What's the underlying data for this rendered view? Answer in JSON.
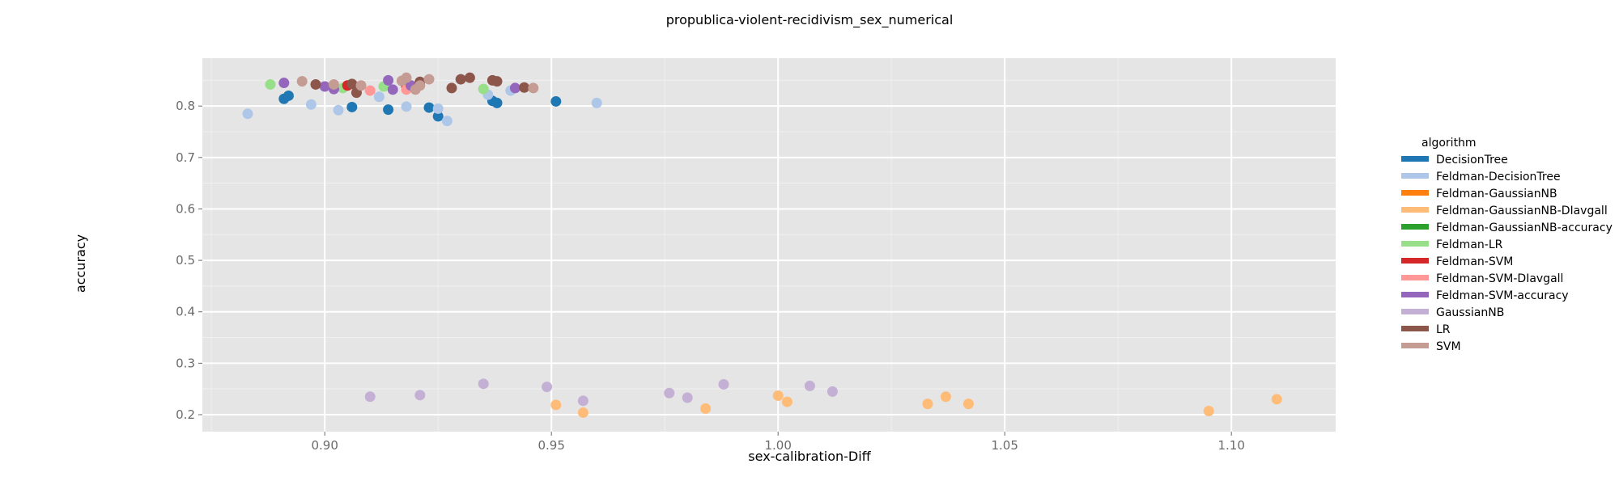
{
  "chart_data": {
    "type": "scatter",
    "title": "propublica-violent-recidivism_sex_numerical",
    "xlabel": "sex-calibration-Diff",
    "ylabel": "accuracy",
    "xlim": [
      0.873,
      1.123
    ],
    "ylim": [
      0.167,
      0.893
    ],
    "xticks": [
      0.9,
      0.95,
      1.0,
      1.05,
      1.1
    ],
    "xtick_labels": [
      "0.90",
      "0.95",
      "1.00",
      "1.05",
      "1.10"
    ],
    "yticks": [
      0.2,
      0.3,
      0.4,
      0.5,
      0.6,
      0.7,
      0.8
    ],
    "ytick_labels": [
      "0.2",
      "0.3",
      "0.4",
      "0.5",
      "0.6",
      "0.7",
      "0.8"
    ],
    "grid": true,
    "legend": {
      "title": "algorithm",
      "position": "right"
    },
    "series": [
      {
        "name": "DecisionTree",
        "color": "#1f77b4",
        "points": [
          [
            0.891,
            0.814
          ],
          [
            0.892,
            0.82
          ],
          [
            0.906,
            0.798
          ],
          [
            0.914,
            0.793
          ],
          [
            0.923,
            0.797
          ],
          [
            0.925,
            0.78
          ],
          [
            0.937,
            0.81
          ],
          [
            0.938,
            0.806
          ],
          [
            0.951,
            0.809
          ]
        ]
      },
      {
        "name": "Feldman-DecisionTree",
        "color": "#aec7e8",
        "points": [
          [
            0.883,
            0.785
          ],
          [
            0.897,
            0.803
          ],
          [
            0.903,
            0.792
          ],
          [
            0.912,
            0.818
          ],
          [
            0.918,
            0.799
          ],
          [
            0.925,
            0.795
          ],
          [
            0.927,
            0.771
          ],
          [
            0.936,
            0.822
          ],
          [
            0.941,
            0.83
          ],
          [
            0.96,
            0.806
          ]
        ]
      },
      {
        "name": "Feldman-GaussianNB",
        "color": "#ff7f0e",
        "points": []
      },
      {
        "name": "Feldman-GaussianNB-DIavgall",
        "color": "#ffbb78",
        "points": [
          [
            0.951,
            0.219
          ],
          [
            0.957,
            0.204
          ],
          [
            0.984,
            0.212
          ],
          [
            1.0,
            0.237
          ],
          [
            1.002,
            0.225
          ],
          [
            1.033,
            0.221
          ],
          [
            1.037,
            0.235
          ],
          [
            1.042,
            0.221
          ],
          [
            1.095,
            0.207
          ],
          [
            1.11,
            0.23
          ]
        ]
      },
      {
        "name": "Feldman-GaussianNB-accuracy",
        "color": "#2ca02c",
        "points": []
      },
      {
        "name": "Feldman-LR",
        "color": "#98df8a",
        "points": [
          [
            0.888,
            0.842
          ],
          [
            0.904,
            0.835
          ],
          [
            0.913,
            0.838
          ],
          [
            0.935,
            0.833
          ]
        ]
      },
      {
        "name": "Feldman-SVM",
        "color": "#d62728",
        "points": [
          [
            0.905,
            0.84
          ],
          [
            0.918,
            0.838
          ]
        ]
      },
      {
        "name": "Feldman-SVM-DIavgall",
        "color": "#ff9896",
        "points": [
          [
            0.91,
            0.83
          ],
          [
            0.918,
            0.832
          ]
        ]
      },
      {
        "name": "Feldman-SVM-accuracy",
        "color": "#9467bd",
        "points": [
          [
            0.891,
            0.845
          ],
          [
            0.9,
            0.838
          ],
          [
            0.902,
            0.833
          ],
          [
            0.914,
            0.85
          ],
          [
            0.915,
            0.832
          ],
          [
            0.919,
            0.84
          ],
          [
            0.942,
            0.835
          ]
        ]
      },
      {
        "name": "GaussianNB",
        "color": "#c5b0d5",
        "points": [
          [
            0.91,
            0.235
          ],
          [
            0.921,
            0.238
          ],
          [
            0.935,
            0.26
          ],
          [
            0.949,
            0.254
          ],
          [
            0.957,
            0.227
          ],
          [
            0.976,
            0.242
          ],
          [
            0.98,
            0.233
          ],
          [
            0.988,
            0.259
          ],
          [
            1.007,
            0.256
          ],
          [
            1.012,
            0.245
          ]
        ]
      },
      {
        "name": "LR",
        "color": "#8c564b",
        "points": [
          [
            0.898,
            0.842
          ],
          [
            0.906,
            0.843
          ],
          [
            0.907,
            0.826
          ],
          [
            0.921,
            0.847
          ],
          [
            0.928,
            0.835
          ],
          [
            0.93,
            0.852
          ],
          [
            0.932,
            0.855
          ],
          [
            0.937,
            0.85
          ],
          [
            0.938,
            0.848
          ],
          [
            0.944,
            0.836
          ]
        ]
      },
      {
        "name": "SVM",
        "color": "#c49c94",
        "points": [
          [
            0.895,
            0.848
          ],
          [
            0.902,
            0.842
          ],
          [
            0.908,
            0.84
          ],
          [
            0.917,
            0.849
          ],
          [
            0.918,
            0.855
          ],
          [
            0.92,
            0.832
          ],
          [
            0.921,
            0.84
          ],
          [
            0.923,
            0.852
          ],
          [
            0.946,
            0.835
          ]
        ]
      }
    ]
  }
}
